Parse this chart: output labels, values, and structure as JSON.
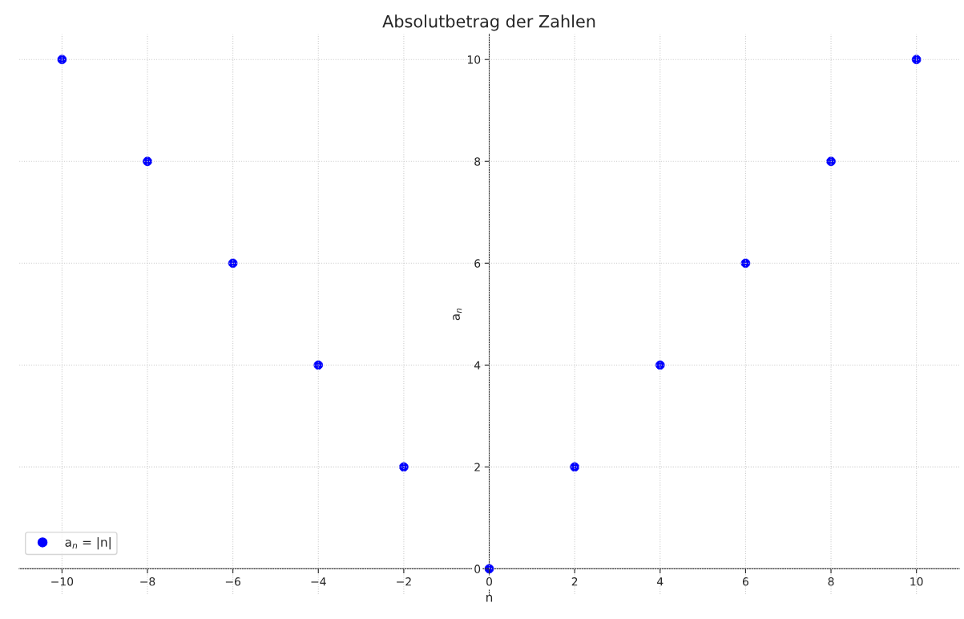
{
  "chart_data": {
    "type": "scatter",
    "title": "Absolutbetrag der Zahlen",
    "xlabel": "n",
    "ylabel": "a$_{n}$",
    "x": [
      -10,
      -8,
      -6,
      -4,
      -2,
      0,
      2,
      4,
      6,
      8,
      10
    ],
    "series": [
      {
        "name": "a$_{n}$ = |n|",
        "color": "#0000ff",
        "values": [
          10,
          8,
          6,
          4,
          2,
          0,
          2,
          4,
          6,
          8,
          10
        ]
      }
    ],
    "marker": "circle",
    "xlim": [
      -11,
      11
    ],
    "ylim": [
      -0.5,
      10.5
    ],
    "xticks": [
      {
        "value": -10,
        "label": "−10"
      },
      {
        "value": -8,
        "label": "−8"
      },
      {
        "value": -6,
        "label": "−6"
      },
      {
        "value": -4,
        "label": "−4"
      },
      {
        "value": -2,
        "label": "−2"
      },
      0,
      2,
      4,
      6,
      8,
      10
    ],
    "yticks": [
      0,
      2,
      4,
      6,
      8,
      10
    ],
    "grid": true,
    "legend": "lower left"
  }
}
